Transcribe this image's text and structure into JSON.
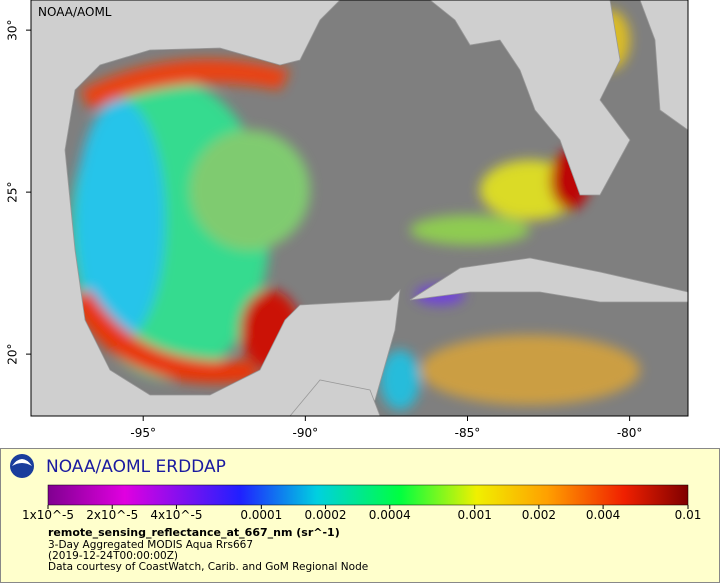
{
  "map": {
    "watermark": "NOAA/AOML",
    "xlim": [
      -98.46,
      -78.2
    ],
    "ylim": [
      18.09,
      30.93
    ],
    "xticks": [
      {
        "value": -95,
        "label": "-95°"
      },
      {
        "value": -90,
        "label": "-90°"
      },
      {
        "value": -85,
        "label": "-85°"
      },
      {
        "value": -80,
        "label": "-80°"
      }
    ],
    "yticks": [
      {
        "value": 30,
        "label": "30°"
      },
      {
        "value": 25,
        "label": "25°"
      },
      {
        "value": 20,
        "label": "20°"
      }
    ]
  },
  "legend": {
    "brand": "NOAA/AOML ERDDAP",
    "colorbar": {
      "scale": "log",
      "lim": [
        1e-05,
        0.01
      ],
      "ticks": [
        {
          "value": 1e-05,
          "label": "1x10^-5"
        },
        {
          "value": 2e-05,
          "label": "2x10^-5"
        },
        {
          "value": 4e-05,
          "label": "4x10^-5"
        },
        0.0001,
        0.0002,
        0.0004,
        0.001,
        0.002,
        0.004,
        0.01
      ]
    },
    "variable": "remote_sensing_reflectance_at_667_nm (sr^-1)",
    "lines": [
      "3-Day Aggregated MODIS Aqua Rrs667",
      "(2019-12-24T00:00:00Z)",
      "Data courtesy of CoastWatch, Carib. and GoM Regional Node"
    ]
  }
}
